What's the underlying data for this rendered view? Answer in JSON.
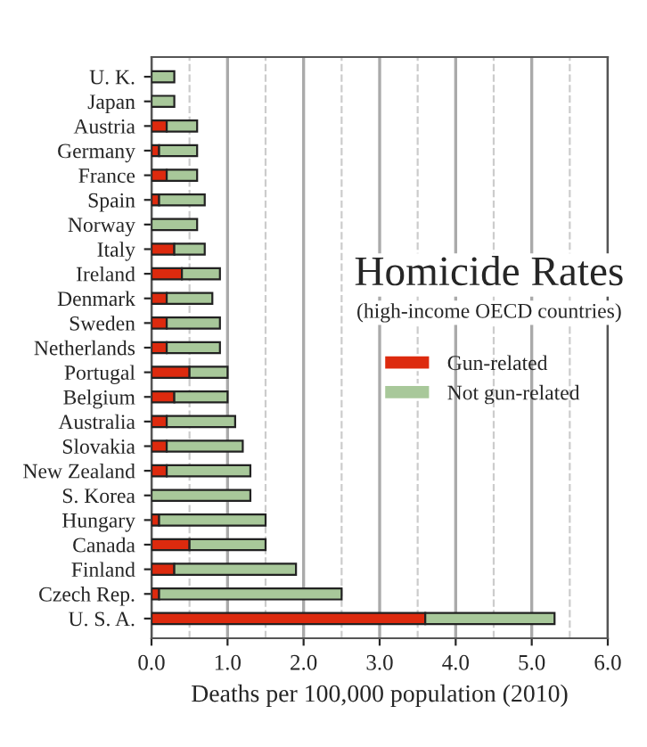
{
  "chart_data": {
    "type": "bar",
    "orientation": "horizontal",
    "stacked": true,
    "title": "Homicide Rates",
    "subtitle": "(high-income OECD countries)",
    "xlabel": "Deaths per 100,000 population (2010)",
    "categories": [
      "U. K.",
      "Japan",
      "Austria",
      "Germany",
      "France",
      "Spain",
      "Norway",
      "Italy",
      "Ireland",
      "Denmark",
      "Sweden",
      "Netherlands",
      "Portugal",
      "Belgium",
      "Australia",
      "Slovakia",
      "New Zealand",
      "S. Korea",
      "Hungary",
      "Canada",
      "Finland",
      "Czech Rep.",
      "U. S. A."
    ],
    "series": [
      {
        "name": "Gun-related",
        "color": "#dd2a0e",
        "values": [
          0,
          0,
          0.2,
          0.1,
          0.2,
          0.1,
          0,
          0.3,
          0.4,
          0.2,
          0.2,
          0.2,
          0.5,
          0.3,
          0.2,
          0.2,
          0.2,
          0,
          0.1,
          0.5,
          0.3,
          0.1,
          3.6
        ]
      },
      {
        "name": "Not gun-related",
        "color": "#a8c89a",
        "values": [
          0.3,
          0.3,
          0.4,
          0.5,
          0.4,
          0.6,
          0.6,
          0.4,
          0.5,
          0.6,
          0.7,
          0.7,
          0.5,
          0.7,
          0.9,
          1.0,
          1.1,
          1.3,
          1.4,
          1.0,
          1.6,
          2.4,
          1.7
        ]
      }
    ],
    "xlim": [
      0,
      6
    ],
    "xticks": [
      {
        "value": 0,
        "label": "0.0"
      },
      {
        "value": 1,
        "label": "1.0"
      },
      {
        "value": 2,
        "label": "2.0"
      },
      {
        "value": 3,
        "label": "3.0"
      },
      {
        "value": 4,
        "label": "4.0"
      },
      {
        "value": 5,
        "label": "5.0"
      },
      {
        "value": 6,
        "label": "6.0"
      }
    ],
    "grid": "x",
    "legend": "right"
  }
}
